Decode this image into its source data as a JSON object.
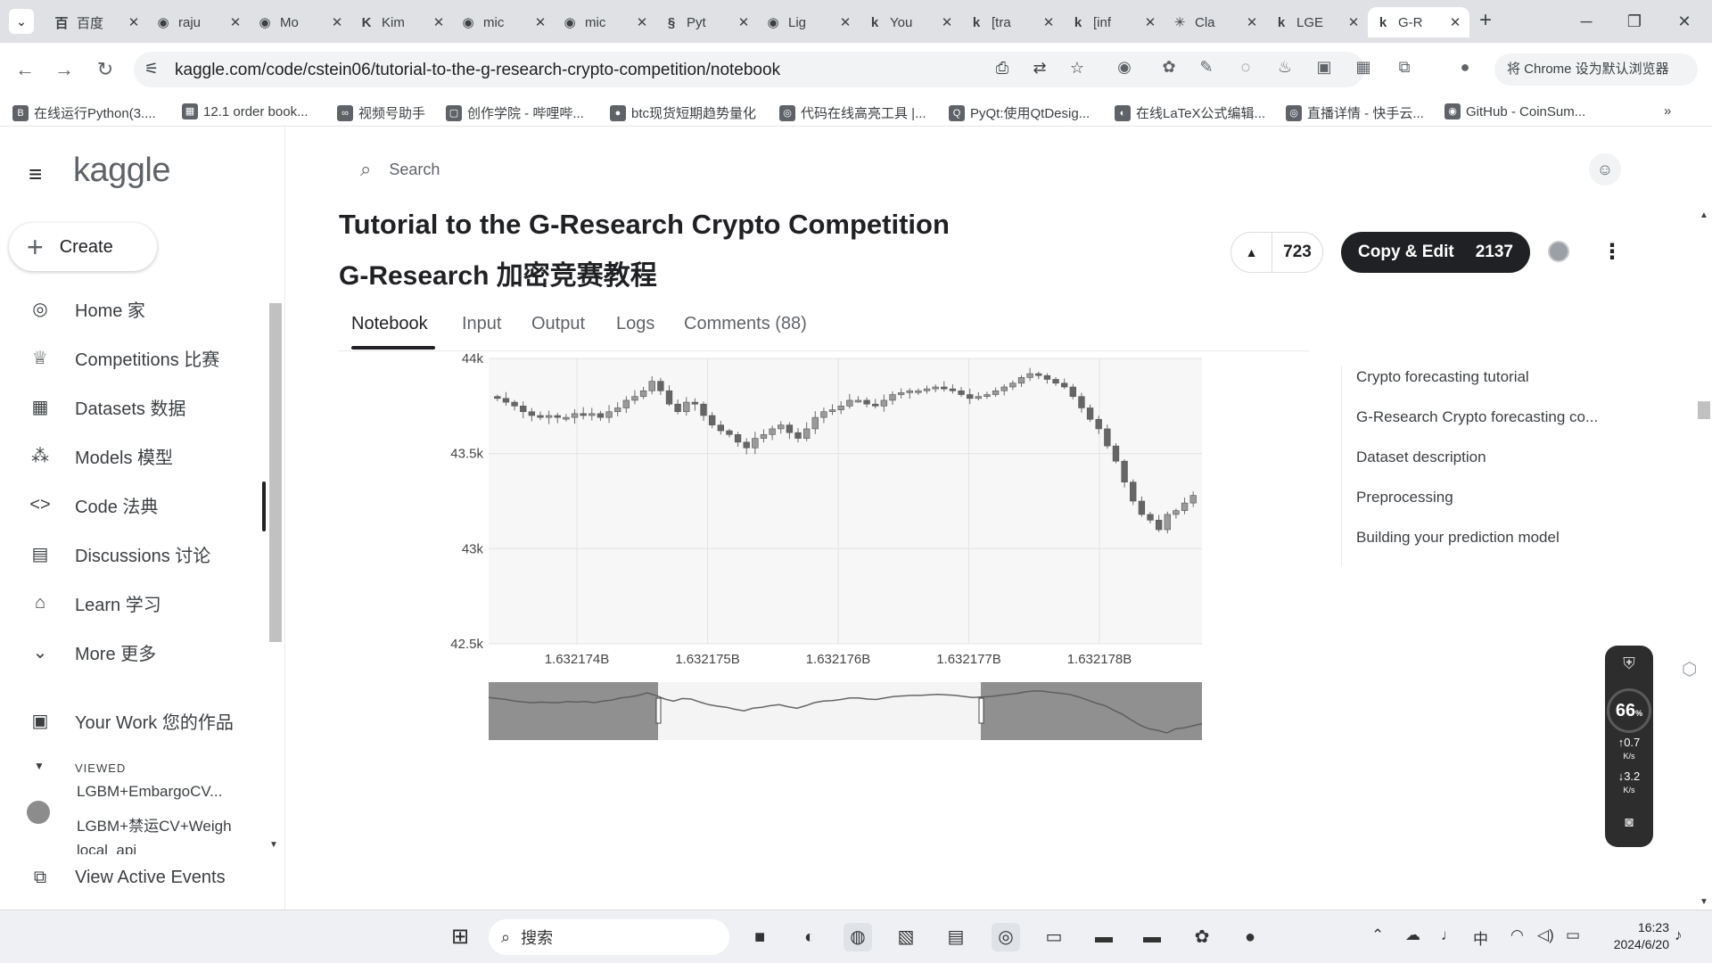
{
  "browser": {
    "tabs": [
      {
        "icon": "baidu-icon",
        "glyph": "百",
        "title": "百度"
      },
      {
        "icon": "github-icon",
        "glyph": "◉",
        "title": "raju"
      },
      {
        "icon": "github-icon",
        "glyph": "◉",
        "title": "Mo"
      },
      {
        "icon": "kimi-icon",
        "glyph": "K",
        "title": "Kim"
      },
      {
        "icon": "github-icon",
        "glyph": "◉",
        "title": "mic"
      },
      {
        "icon": "github-icon",
        "glyph": "◉",
        "title": "mic"
      },
      {
        "icon": "pytorch-icon",
        "glyph": "§",
        "title": "Pyt"
      },
      {
        "icon": "github-icon",
        "glyph": "◉",
        "title": "Lig"
      },
      {
        "icon": "kaggle-icon",
        "glyph": "k",
        "title": "You"
      },
      {
        "icon": "kaggle-icon",
        "glyph": "k",
        "title": "[tra"
      },
      {
        "icon": "kaggle-icon",
        "glyph": "k",
        "title": "[inf"
      },
      {
        "icon": "claude-icon",
        "glyph": "✳",
        "title": "Cla"
      },
      {
        "icon": "kaggle-icon",
        "glyph": "k",
        "title": "LGE"
      },
      {
        "icon": "kaggle-icon",
        "glyph": "k",
        "title": "G-R"
      }
    ],
    "active_tab": 13,
    "new_tab": "+",
    "address": "kaggle.com/code/cstein06/tutorial-to-the-g-research-crypto-competition/notebook",
    "set_default": "将 Chrome 设为默认浏览器",
    "bookmarks": [
      {
        "glyph": "B",
        "label": "在线运行Python(3...."
      },
      {
        "glyph": "▦",
        "label": "12.1 order book..."
      },
      {
        "glyph": "∞",
        "label": "视频号助手"
      },
      {
        "glyph": "▢",
        "label": "创作学院 - 哔哩哔..."
      },
      {
        "glyph": "●",
        "label": "btc现货短期趋势量化"
      },
      {
        "glyph": "◎",
        "label": "代码在线高亮工具 |..."
      },
      {
        "glyph": "Q",
        "label": "PyQt:使用QtDesig..."
      },
      {
        "glyph": "◐",
        "label": "在线LaTeX公式编辑..."
      },
      {
        "glyph": "◎",
        "label": "直播详情 - 快手云..."
      },
      {
        "glyph": "◉",
        "label": "GitHub - CoinSum..."
      }
    ],
    "bookmarks_more": "»"
  },
  "kaggle": {
    "logo": "kaggle",
    "create": "Create",
    "nav": [
      {
        "icon": "compass-icon",
        "glyph": "◎",
        "label": "Home 家"
      },
      {
        "icon": "trophy-icon",
        "glyph": "♕",
        "label": "Competitions 比赛"
      },
      {
        "icon": "table-icon",
        "glyph": "▦",
        "label": "Datasets 数据"
      },
      {
        "icon": "models-icon",
        "glyph": "⁂",
        "label": "Models 模型"
      },
      {
        "icon": "code-icon",
        "glyph": "<>",
        "label": "Code 法典"
      },
      {
        "icon": "discussion-icon",
        "glyph": "▤",
        "label": "Discussions 讨论"
      },
      {
        "icon": "school-icon",
        "glyph": "⌂",
        "label": "Learn 学习"
      },
      {
        "icon": "chevron-down-icon",
        "glyph": "⌄",
        "label": "More 更多"
      }
    ],
    "your_work": "Your Work 您的作品",
    "viewed_label": "VIEWED",
    "viewed": [
      "LGBM+EmbargoCV...",
      "LGBM+禁运CV+Weigh",
      "local_api"
    ],
    "view_active_events": "View Active Events",
    "search_placeholder": "Search",
    "title_en": "Tutorial to the G-Research Crypto Competition",
    "title_zh": "G-Research 加密竞赛教程",
    "upvotes": "723",
    "copy_edit": "Copy & Edit",
    "copy_count": "2137",
    "tabs": [
      "Notebook",
      "Input",
      "Output",
      "Logs",
      "Comments (88)"
    ],
    "toc": [
      "Crypto forecasting tutorial",
      "G-Research Crypto forecasting co...",
      "Dataset description",
      "Preprocessing",
      "Building your prediction model"
    ]
  },
  "chart_data": {
    "type": "candlestick",
    "y_ticks": [
      "44k",
      "43.5k",
      "43k",
      "42.5k"
    ],
    "ylim": [
      42500,
      44000
    ],
    "x_ticks": [
      "1.632174B",
      "1.632175B",
      "1.632176B",
      "1.632177B",
      "1.632178B"
    ],
    "close": [
      43790,
      43770,
      43750,
      43720,
      43700,
      43690,
      43700,
      43690,
      43690,
      43710,
      43700,
      43710,
      43690,
      43720,
      43740,
      43780,
      43800,
      43830,
      43880,
      43830,
      43760,
      43720,
      43770,
      43760,
      43700,
      43650,
      43620,
      43600,
      43560,
      43530,
      43580,
      43600,
      43630,
      43650,
      43610,
      43580,
      43630,
      43690,
      43720,
      43730,
      43750,
      43780,
      43780,
      43760,
      43750,
      43780,
      43810,
      43820,
      43830,
      43830,
      43840,
      43850,
      43840,
      43830,
      43810,
      43790,
      43800,
      43810,
      43830,
      43850,
      43870,
      43900,
      43920,
      43910,
      43890,
      43870,
      43850,
      43800,
      43740,
      43680,
      43630,
      43540,
      43460,
      43350,
      43250,
      43180,
      43150,
      43100,
      43180,
      43200,
      43240,
      43280
    ],
    "colors": {
      "up": "#888888",
      "down": "#666666",
      "nav": "#8a8a8a"
    },
    "range_selector": true
  },
  "widget": {
    "percent": "66",
    "pct_sign": "%",
    "up": "0.7",
    "down": "3.2",
    "unit": "K/s"
  },
  "taskbar": {
    "search": "搜索",
    "time": "16:23",
    "date": "2024/6/20",
    "ime": "中"
  }
}
